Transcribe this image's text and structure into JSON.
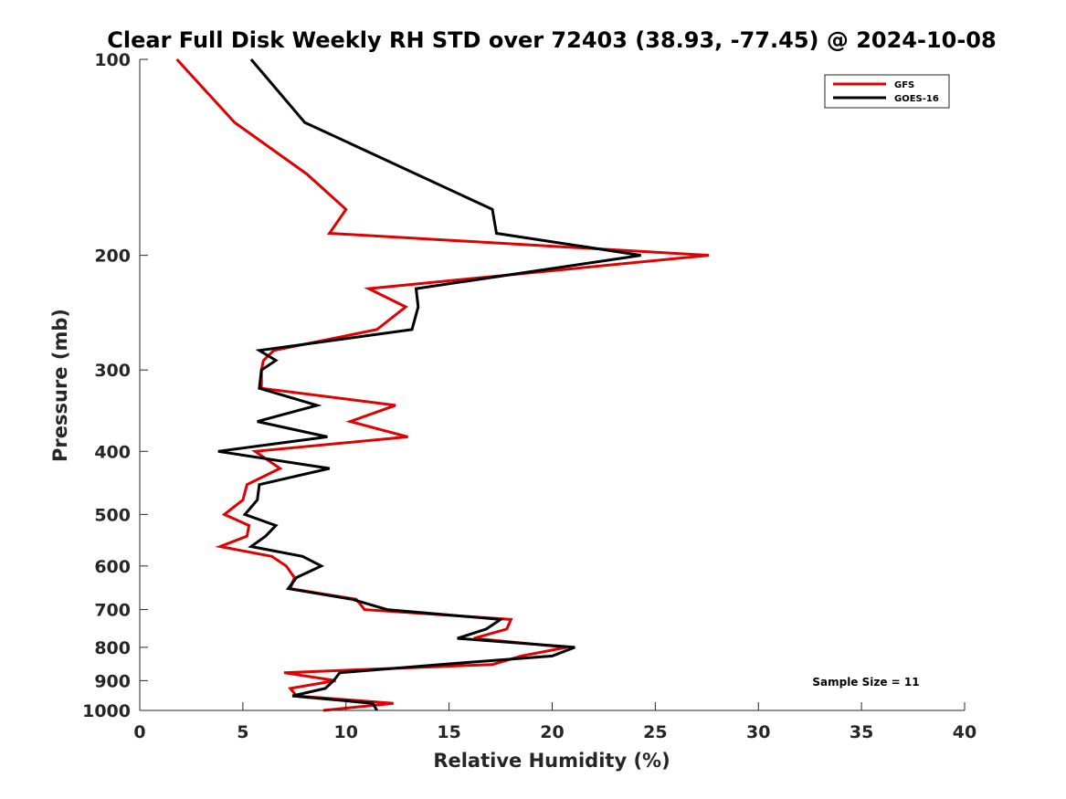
{
  "chart_data": {
    "type": "line",
    "title": "Clear Full Disk Weekly RH STD over 72403 (38.93, -77.45) @ 2024-10-08",
    "xlabel": "Relative Humidity (%)",
    "ylabel": "Pressure (mb)",
    "xlim": [
      0,
      40
    ],
    "ylim": [
      100,
      1000
    ],
    "y_scale": "log",
    "y_reversed": true,
    "x_ticks": [
      0,
      5,
      10,
      15,
      20,
      25,
      30,
      35,
      40
    ],
    "y_ticks": [
      100,
      200,
      300,
      400,
      500,
      600,
      700,
      800,
      900,
      1000
    ],
    "grid": false,
    "legend_position": "top-right",
    "annotation": "Sample Size = 11",
    "series": [
      {
        "name": "GFS",
        "color": "#e00000",
        "points": [
          [
            1.8,
            100
          ],
          [
            4.6,
            125
          ],
          [
            8.1,
            150
          ],
          [
            10.0,
            170
          ],
          [
            9.2,
            185
          ],
          [
            27.6,
            200
          ],
          [
            11.1,
            225
          ],
          [
            12.9,
            240
          ],
          [
            11.5,
            260
          ],
          [
            6.5,
            280
          ],
          [
            6.0,
            290
          ],
          [
            5.9,
            300
          ],
          [
            5.9,
            320
          ],
          [
            12.4,
            340
          ],
          [
            10.2,
            360
          ],
          [
            13.0,
            380
          ],
          [
            5.6,
            400
          ],
          [
            6.8,
            425
          ],
          [
            5.2,
            450
          ],
          [
            5.0,
            475
          ],
          [
            4.1,
            500
          ],
          [
            5.3,
            520
          ],
          [
            5.2,
            540
          ],
          [
            3.9,
            560
          ],
          [
            6.4,
            580
          ],
          [
            7.1,
            600
          ],
          [
            7.5,
            625
          ],
          [
            7.3,
            650
          ],
          [
            10.5,
            675
          ],
          [
            10.9,
            700
          ],
          [
            18.0,
            725
          ],
          [
            17.8,
            750
          ],
          [
            16.2,
            775
          ],
          [
            20.7,
            800
          ],
          [
            18.5,
            825
          ],
          [
            17.1,
            850
          ],
          [
            7.0,
            875
          ],
          [
            9.5,
            900
          ],
          [
            7.3,
            925
          ],
          [
            7.6,
            950
          ],
          [
            12.3,
            975
          ],
          [
            8.9,
            1000
          ]
        ]
      },
      {
        "name": "GOES-16",
        "color": "#000000",
        "points": [
          [
            5.4,
            100
          ],
          [
            8.0,
            125
          ],
          [
            17.1,
            170
          ],
          [
            17.3,
            185
          ],
          [
            24.3,
            200
          ],
          [
            13.4,
            225
          ],
          [
            13.5,
            240
          ],
          [
            13.2,
            260
          ],
          [
            5.8,
            280
          ],
          [
            6.6,
            290
          ],
          [
            5.9,
            300
          ],
          [
            5.8,
            320
          ],
          [
            8.6,
            340
          ],
          [
            5.7,
            360
          ],
          [
            9.1,
            380
          ],
          [
            3.8,
            400
          ],
          [
            9.2,
            425
          ],
          [
            5.8,
            450
          ],
          [
            5.7,
            475
          ],
          [
            5.1,
            500
          ],
          [
            6.6,
            520
          ],
          [
            6.1,
            540
          ],
          [
            5.4,
            560
          ],
          [
            7.9,
            580
          ],
          [
            8.8,
            600
          ],
          [
            7.6,
            625
          ],
          [
            7.2,
            650
          ],
          [
            10.3,
            675
          ],
          [
            12.0,
            700
          ],
          [
            17.5,
            725
          ],
          [
            16.8,
            750
          ],
          [
            15.4,
            775
          ],
          [
            21.1,
            800
          ],
          [
            20.0,
            825
          ],
          [
            14.6,
            850
          ],
          [
            9.7,
            875
          ],
          [
            9.4,
            900
          ],
          [
            9.0,
            925
          ],
          [
            7.4,
            950
          ],
          [
            11.3,
            975
          ],
          [
            11.5,
            1000
          ]
        ]
      }
    ]
  }
}
